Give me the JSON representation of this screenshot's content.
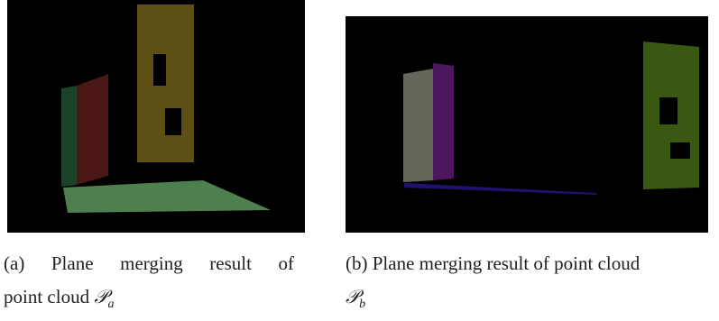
{
  "figures": [
    {
      "lines": [
        "(a) Plane merging result of",
        "point cloud"
      ],
      "symbol": "𝒫",
      "subscript": "a"
    },
    {
      "lines": [
        "(b) Plane merging result of point cloud"
      ],
      "symbol": "𝒫",
      "subscript": "b"
    }
  ]
}
